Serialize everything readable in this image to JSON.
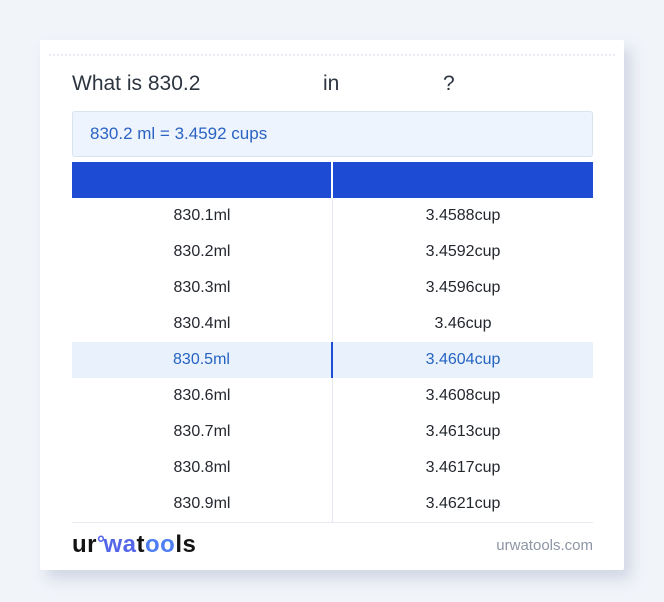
{
  "colors": {
    "page_bg": "#f1f4f9",
    "card_bg": "#ffffff",
    "title_text": "#2d3540",
    "header_blue": "#1e4bd4",
    "highlight_bg": "#e9f2fc",
    "highlight_text": "#2563c2",
    "highlight_divider": "#1d4ed8",
    "row_text": "#23272e",
    "row_divider": "#e3e8ef",
    "result_text": "#2b62c4",
    "result_bg": "#edf4fd",
    "result_border": "#d9e4f1",
    "footer_site_text": "#8d95a5",
    "logo_black": "#141414",
    "logo_blue": "#5566e8",
    "logo_blue2": "#4d7ef2"
  },
  "question": {
    "prefix": "What is 830.2",
    "connector": "in",
    "suffix": "?"
  },
  "result": {
    "text": "830.2 ml = 3.4592 cups"
  },
  "table": {
    "header": {
      "col1": "",
      "col2": ""
    },
    "rows": [
      {
        "ml": "830.1ml",
        "cup": "3.4588cup",
        "highlight": false
      },
      {
        "ml": "830.2ml",
        "cup": "3.4592cup",
        "highlight": false
      },
      {
        "ml": "830.3ml",
        "cup": "3.4596cup",
        "highlight": false
      },
      {
        "ml": "830.4ml",
        "cup": "3.46cup",
        "highlight": false
      },
      {
        "ml": "830.5ml",
        "cup": "3.4604cup",
        "highlight": true
      },
      {
        "ml": "830.6ml",
        "cup": "3.4608cup",
        "highlight": false
      },
      {
        "ml": "830.7ml",
        "cup": "3.4613cup",
        "highlight": false
      },
      {
        "ml": "830.8ml",
        "cup": "3.4617cup",
        "highlight": false
      },
      {
        "ml": "830.9ml",
        "cup": "3.4621cup",
        "highlight": false
      }
    ]
  },
  "footer": {
    "logo": {
      "ur": "ur",
      "degree": "°",
      "wa": "wa",
      "t": "t",
      "oo": "oo",
      "ls": "ls"
    },
    "site": "urwatools.com"
  }
}
